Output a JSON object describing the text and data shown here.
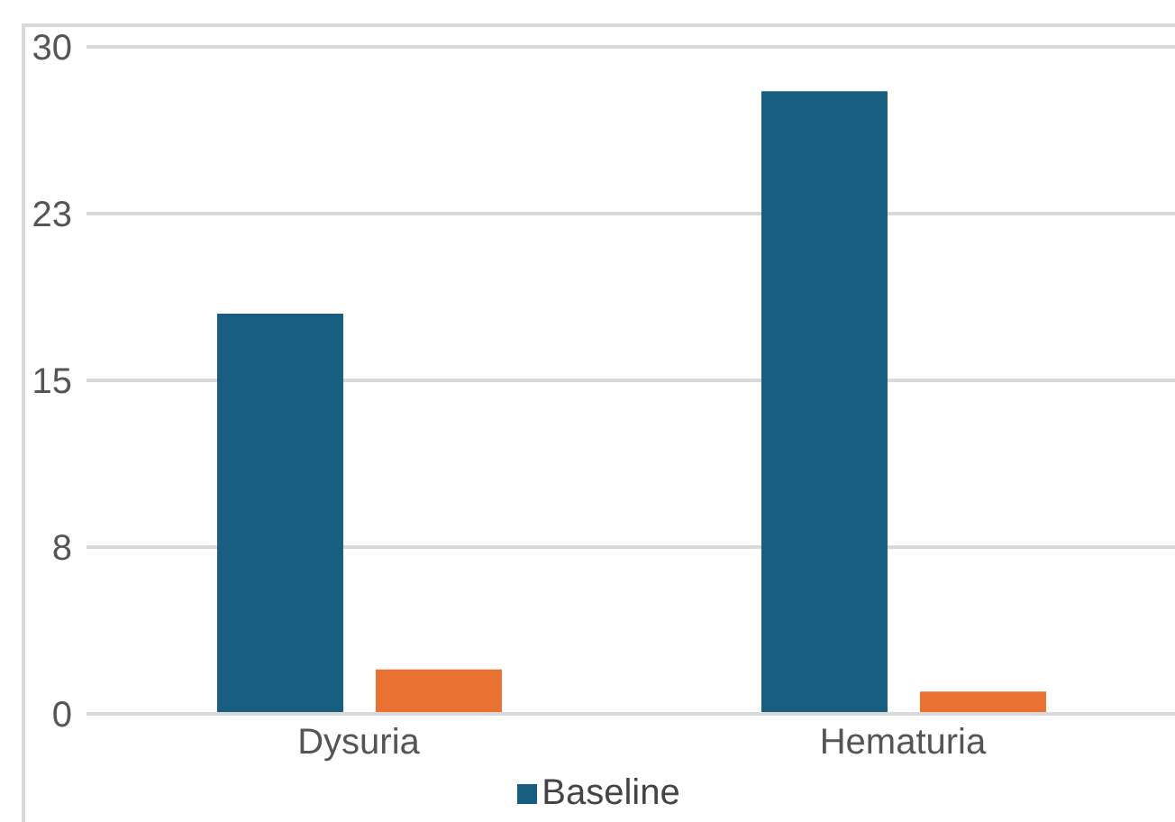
{
  "chart_data": {
    "type": "bar",
    "categories": [
      "Dysuria",
      "Hematuria"
    ],
    "series": [
      {
        "name": "Baseline",
        "color": "#175e80",
        "values": [
          18,
          28
        ]
      },
      {
        "color": "#e97132",
        "values": [
          2,
          1
        ]
      }
    ],
    "ylim": [
      0,
      30
    ],
    "yticks": [
      0,
      {
        "value": 7.5,
        "label": "8"
      },
      15,
      {
        "value": 22.5,
        "label": "23"
      },
      30
    ],
    "grid": "y",
    "legend": "bottom"
  }
}
